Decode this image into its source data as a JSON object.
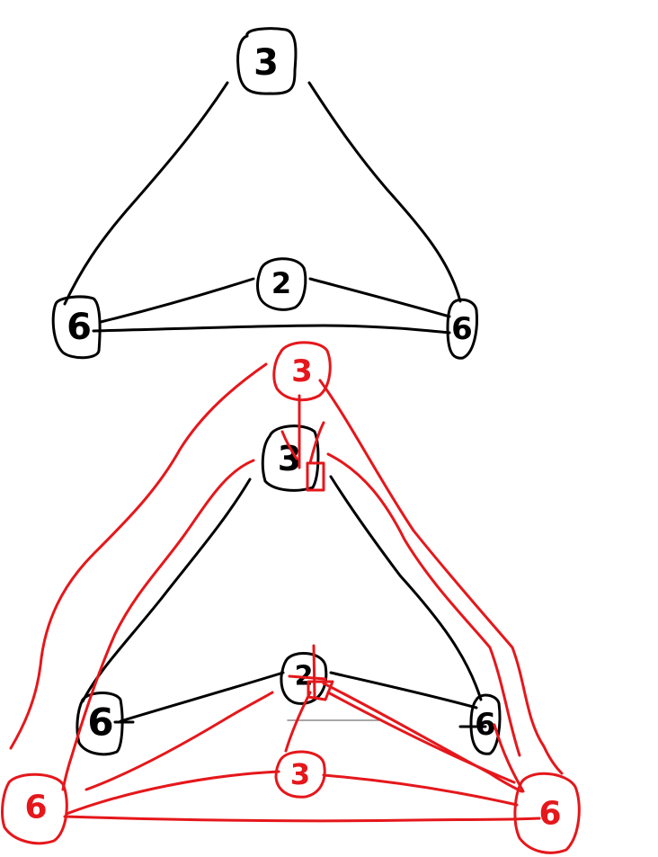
{
  "colors": {
    "ink": "#000000",
    "red": "#e5171b",
    "rule": "#8a8a8a",
    "background": "#ffffff"
  },
  "top_graph": {
    "nodes": [
      {
        "id": "t-top",
        "label": "3"
      },
      {
        "id": "t-left",
        "label": "6"
      },
      {
        "id": "t-mid",
        "label": "2"
      },
      {
        "id": "t-right",
        "label": "6"
      }
    ]
  },
  "bottom_graph": {
    "black_nodes": [
      {
        "id": "b-top",
        "label": "3"
      },
      {
        "id": "b-left",
        "label": "6"
      },
      {
        "id": "b-mid",
        "label": "2"
      },
      {
        "id": "b-right",
        "label": "6"
      }
    ],
    "red_nodes": [
      {
        "id": "r-top",
        "label": "3"
      },
      {
        "id": "r-mid",
        "label": "3"
      },
      {
        "id": "r-left",
        "label": "6"
      },
      {
        "id": "r-right",
        "label": "6"
      }
    ]
  }
}
